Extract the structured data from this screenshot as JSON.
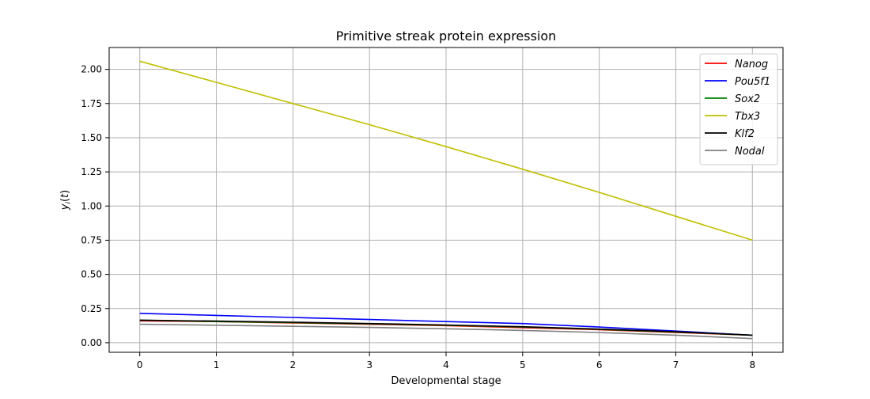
{
  "chart_data": {
    "type": "line",
    "title": "Primitive streak protein expression",
    "xlabel": "Developmental stage",
    "ylabel": "y_i(t)",
    "xlim": [
      -0.4,
      8.4
    ],
    "ylim": [
      -0.07,
      2.16
    ],
    "grid": true,
    "legend_position": "top-right",
    "x_ticks": [
      0,
      1,
      2,
      3,
      4,
      5,
      6,
      7,
      8
    ],
    "y_ticks": [
      0.0,
      0.25,
      0.5,
      0.75,
      1.0,
      1.25,
      1.5,
      1.75,
      2.0
    ],
    "x_tick_labels": [
      "0",
      "1",
      "2",
      "3",
      "4",
      "5",
      "6",
      "7",
      "8"
    ],
    "y_tick_labels": [
      "0.00",
      "0.25",
      "0.50",
      "0.75",
      "1.00",
      "1.25",
      "1.50",
      "1.75",
      "2.00"
    ],
    "x": [
      0,
      1,
      2,
      3,
      4,
      5,
      6,
      7,
      8
    ],
    "series": [
      {
        "name": "Nanog",
        "color": "#ff0000",
        "values": [
          0.16,
          0.155,
          0.145,
          0.135,
          0.125,
          0.11,
          0.095,
          0.075,
          0.055
        ]
      },
      {
        "name": "Pou5f1",
        "color": "#0000ff",
        "values": [
          0.215,
          0.2,
          0.185,
          0.17,
          0.155,
          0.14,
          0.115,
          0.085,
          0.055
        ]
      },
      {
        "name": "Sox2",
        "color": "#008000",
        "values": [
          0.165,
          0.155,
          0.147,
          0.138,
          0.128,
          0.115,
          0.098,
          0.078,
          0.055
        ]
      },
      {
        "name": "Tbx3",
        "color": "#bfbf00",
        "values": [
          2.06,
          1.905,
          1.75,
          1.595,
          1.435,
          1.27,
          1.1,
          0.925,
          0.75
        ]
      },
      {
        "name": "Klf2",
        "color": "#000000",
        "values": [
          0.165,
          0.158,
          0.15,
          0.14,
          0.13,
          0.117,
          0.1,
          0.08,
          0.055
        ]
      },
      {
        "name": "Nodal",
        "color": "#808080",
        "values": [
          0.135,
          0.128,
          0.12,
          0.112,
          0.102,
          0.09,
          0.075,
          0.055,
          0.03
        ]
      }
    ]
  }
}
